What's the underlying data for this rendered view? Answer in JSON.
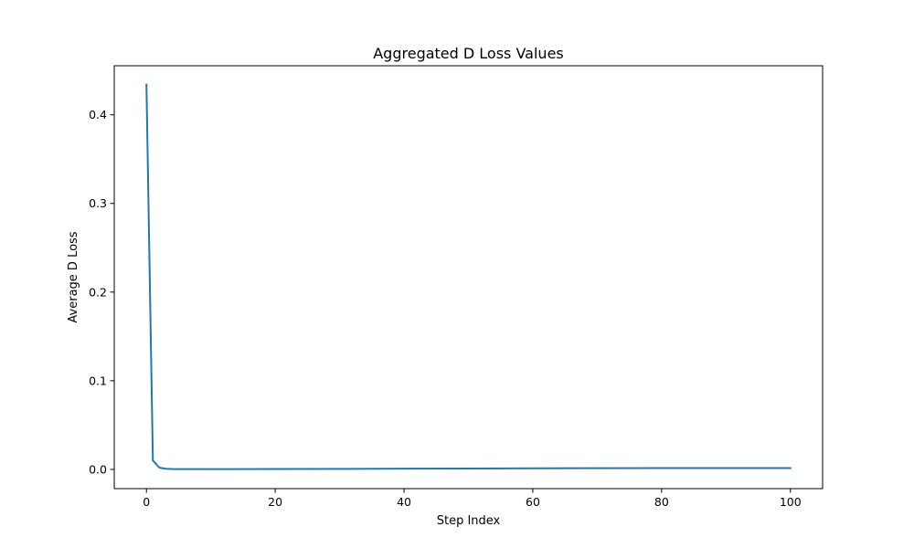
{
  "chart_data": {
    "type": "line",
    "title": "Aggregated D Loss Values",
    "xlabel": "Step Index",
    "ylabel": "Average D Loss",
    "xlim": [
      -5,
      105
    ],
    "ylim": [
      -0.0217,
      0.4553
    ],
    "x_ticks": [
      0,
      20,
      40,
      60,
      80,
      100
    ],
    "x_tick_labels": [
      "0",
      "20",
      "40",
      "60",
      "80",
      "100"
    ],
    "y_ticks": [
      0.0,
      0.1,
      0.2,
      0.3,
      0.4
    ],
    "y_tick_labels": [
      "0.0",
      "0.1",
      "0.2",
      "0.3",
      "0.4"
    ],
    "grid": false,
    "legend": "none",
    "series_color": "#1f77b4",
    "series": [
      {
        "x": [
          0,
          1,
          2,
          3,
          4,
          5,
          10,
          20,
          30,
          40,
          50,
          60,
          70,
          80,
          90,
          100
        ],
        "y": [
          0.434,
          0.01,
          0.002,
          0.0007,
          0.0004,
          0.0003,
          0.0003,
          0.0004,
          0.0006,
          0.0008,
          0.001,
          0.0012,
          0.0014,
          0.0015,
          0.0015,
          0.0015
        ]
      }
    ]
  }
}
